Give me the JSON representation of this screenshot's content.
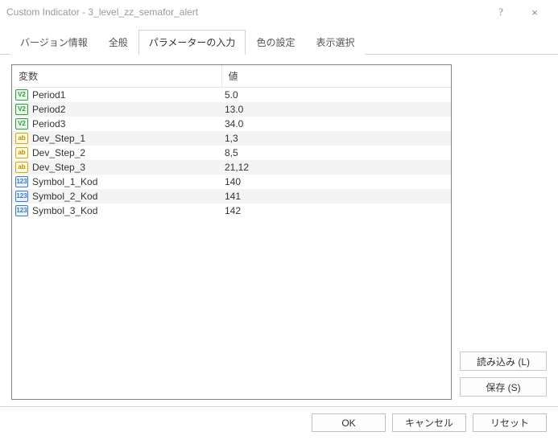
{
  "window": {
    "title": "Custom Indicator - 3_level_zz_semafor_alert",
    "help_glyph": "?",
    "close_glyph": "×"
  },
  "tabs": [
    {
      "label": "バージョン情報",
      "active": false
    },
    {
      "label": "全般",
      "active": false
    },
    {
      "label": "パラメーターの入力",
      "active": true
    },
    {
      "label": "色の設定",
      "active": false
    },
    {
      "label": "表示選択",
      "active": false
    }
  ],
  "columns": {
    "name": "変数",
    "value": "値"
  },
  "rows": [
    {
      "icon_type": "double",
      "icon_txt": "V2",
      "name": "Period1",
      "value": "5.0"
    },
    {
      "icon_type": "double",
      "icon_txt": "V2",
      "name": "Period2",
      "value": "13.0"
    },
    {
      "icon_type": "double",
      "icon_txt": "V2",
      "name": "Period3",
      "value": "34.0"
    },
    {
      "icon_type": "string",
      "icon_txt": "ab",
      "name": "Dev_Step_1",
      "value": "1,3"
    },
    {
      "icon_type": "string",
      "icon_txt": "ab",
      "name": "Dev_Step_2",
      "value": "8,5"
    },
    {
      "icon_type": "string",
      "icon_txt": "ab",
      "name": "Dev_Step_3",
      "value": "21,12"
    },
    {
      "icon_type": "int",
      "icon_txt": "123",
      "name": "Symbol_1_Kod",
      "value": "140"
    },
    {
      "icon_type": "int",
      "icon_txt": "123",
      "name": "Symbol_2_Kod",
      "value": "141"
    },
    {
      "icon_type": "int",
      "icon_txt": "123",
      "name": "Symbol_3_Kod",
      "value": "142"
    }
  ],
  "side_buttons": {
    "load": "読み込み (L)",
    "save": "保存 (S)"
  },
  "bottom_buttons": {
    "ok": "OK",
    "cancel": "キャンセル",
    "reset": "リセット"
  },
  "styles": {
    "zebra_even_bg": "#f4f4f4",
    "border_color": "#828282",
    "icon_colors": {
      "double": {
        "bg": "#e8f5e8",
        "border": "#2e9e3f",
        "fg": "#2e9e3f"
      },
      "string": {
        "bg": "#fff9e0",
        "border": "#d4a800",
        "fg": "#b89000"
      },
      "int": {
        "bg": "#e8f1fb",
        "border": "#3a7ec4",
        "fg": "#3a7ec4"
      }
    }
  }
}
